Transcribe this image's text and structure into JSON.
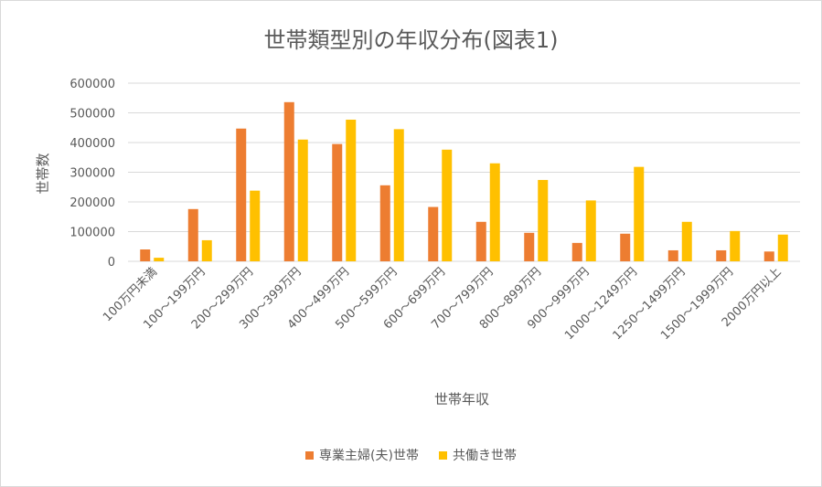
{
  "chart_data": {
    "type": "bar",
    "title": "世帯類型別の年収分布(図表1)",
    "xlabel": "世帯年収",
    "ylabel": "世帯数",
    "ylim": [
      0,
      600000
    ],
    "yticks": [
      "0",
      "100000",
      "200000",
      "300000",
      "400000",
      "500000",
      "600000"
    ],
    "grid": true,
    "legend_position": "bottom",
    "categories": [
      "100万円未満",
      "100～199万円",
      "200～299万円",
      "300～399万円",
      "400～499万円",
      "500～599万円",
      "600～699万円",
      "700～799万円",
      "800～899万円",
      "900～999万円",
      "1000～1249万円",
      "1250～1499万円",
      "1500～1999万円",
      "2000万円以上"
    ],
    "series": [
      {
        "name": "専業主婦(夫)世帯",
        "color": "#ED7D31",
        "values": [
          40000,
          176000,
          447000,
          536000,
          395000,
          256000,
          183000,
          133000,
          96000,
          62000,
          93000,
          37000,
          37000,
          33000
        ]
      },
      {
        "name": "共働き世帯",
        "color": "#FFC000",
        "values": [
          12000,
          71000,
          238000,
          410000,
          477000,
          445000,
          376000,
          330000,
          274000,
          205000,
          318000,
          133000,
          102000,
          90000
        ]
      }
    ]
  }
}
